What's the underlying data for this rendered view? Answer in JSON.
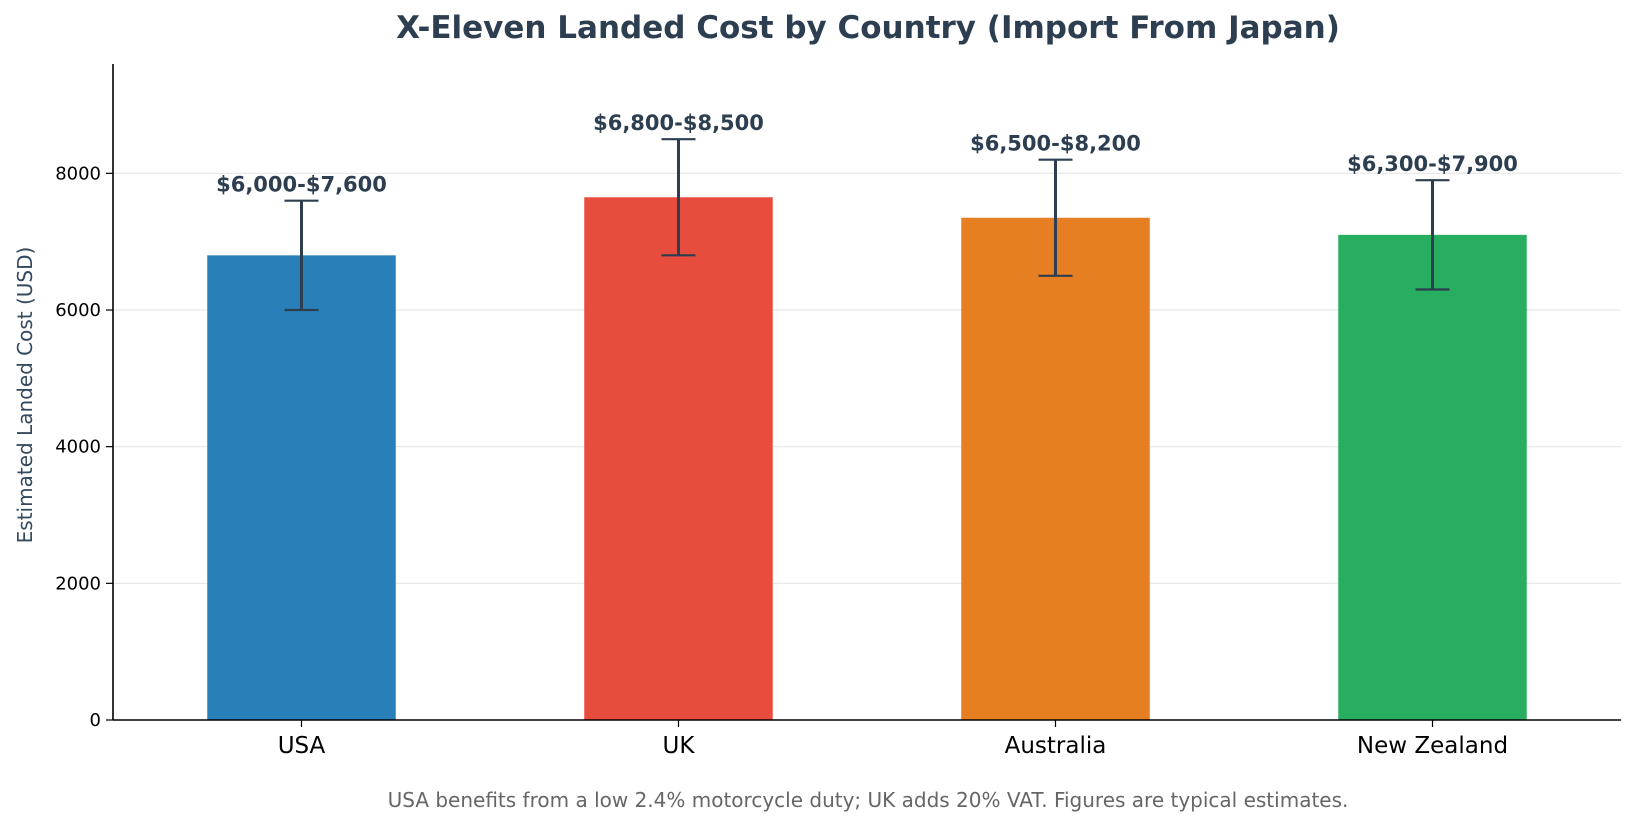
{
  "chart_data": {
    "type": "bar",
    "title": "X-Eleven Landed Cost by Country (Import From Japan)",
    "xlabel": "",
    "ylabel": "Estimated Landed Cost (USD)",
    "ylim": [
      0,
      9600
    ],
    "yticks": [
      0,
      2000,
      4000,
      6000,
      8000
    ],
    "grid": "horizontal",
    "categories": [
      "USA",
      "UK",
      "Australia",
      "New Zealand"
    ],
    "values": [
      6800,
      7650,
      7350,
      7100
    ],
    "range_low": [
      6000,
      6800,
      6500,
      6300
    ],
    "range_high": [
      7600,
      8500,
      8200,
      7900
    ],
    "data_labels": [
      "$6,000-$7,600",
      "$6,800-$8,500",
      "$6,500-$8,200",
      "$6,300-$7,900"
    ],
    "colors": [
      "#2980b9",
      "#e74c3c",
      "#e67e22",
      "#27ae60"
    ],
    "errorbar_color": "#2c3e50",
    "footnote": "USA benefits from a low 2.4% motorcycle duty; UK adds 20% VAT. Figures are typical estimates."
  }
}
